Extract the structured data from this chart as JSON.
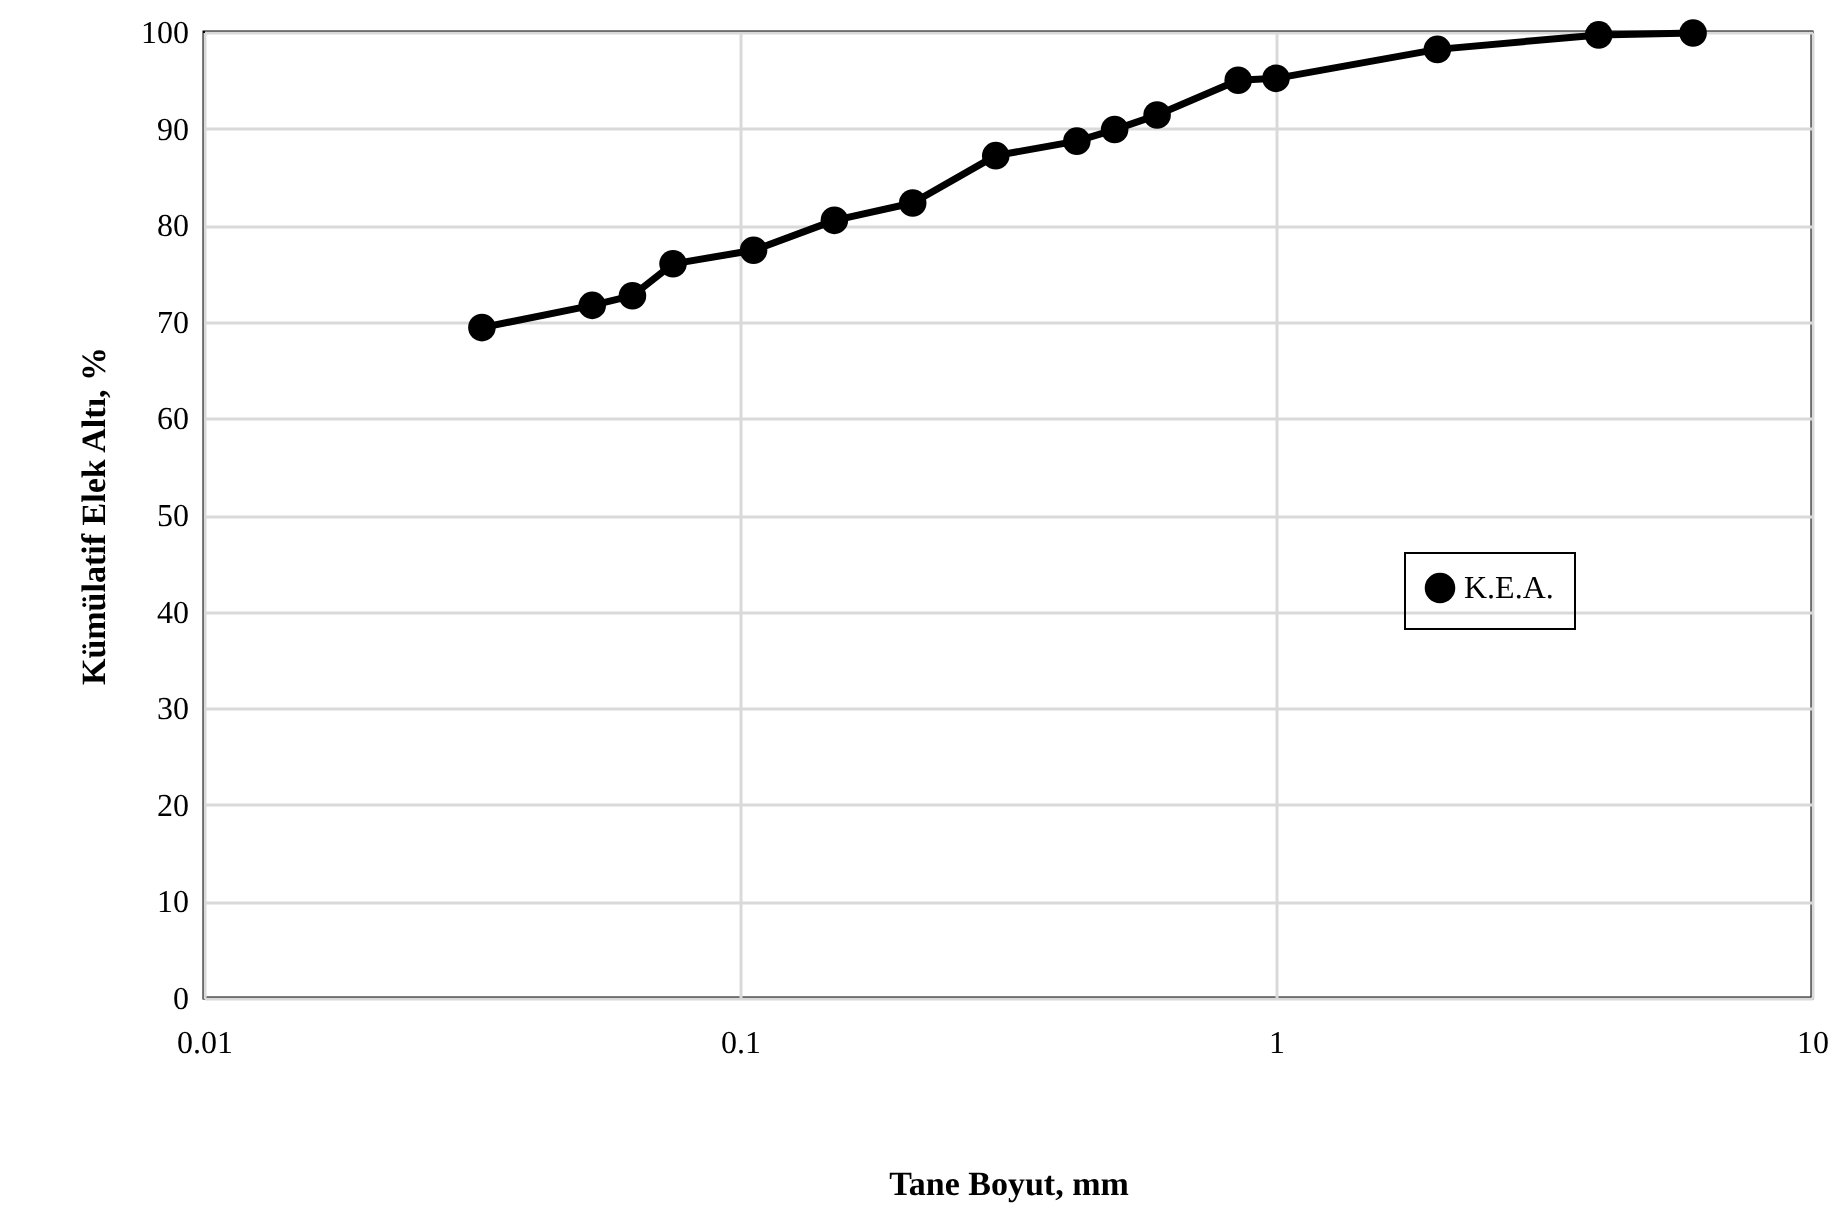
{
  "chart_data": {
    "type": "line",
    "xlabel": "Tane Boyut, mm",
    "ylabel": "Kümülatif Elek Altı, %",
    "x": [
      0.033,
      0.053,
      0.063,
      0.075,
      0.106,
      0.15,
      0.21,
      0.3,
      0.425,
      0.5,
      0.6,
      0.85,
      1,
      2,
      4,
      6
    ],
    "series": [
      {
        "name": "K.E.A.",
        "color": "#000000",
        "values": [
          69.4,
          71.7,
          72.7,
          76.0,
          77.4,
          80.5,
          82.3,
          87.2,
          88.7,
          89.9,
          91.4,
          95.0,
          95.2,
          98.2,
          99.7,
          99.9
        ]
      }
    ],
    "log": "x",
    "xlim": [
      0.01,
      10
    ],
    "xticks": [
      0.01,
      0.1,
      1,
      10
    ],
    "ylim": [
      0,
      100
    ],
    "yticks": [
      0,
      10,
      20,
      30,
      40,
      50,
      60,
      70,
      80,
      90,
      100
    ],
    "grid": true,
    "legend": "right",
    "marker": "circle",
    "line_style": "solid"
  }
}
